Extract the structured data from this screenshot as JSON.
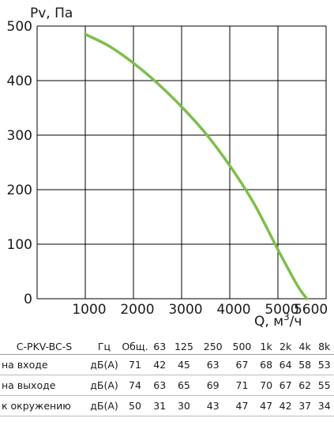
{
  "chart_data": {
    "type": "line",
    "ylabel": "Pv, Па",
    "xlabel": "Q, м³/ч",
    "xlabel_main": "Q, м",
    "xlabel_sup": "3",
    "xlabel_tail": "/ч",
    "xlim": [
      0,
      6000
    ],
    "ylim": [
      0,
      500
    ],
    "x_ticks": [
      "1000",
      "2000",
      "3000",
      "4000",
      "5000",
      "5600"
    ],
    "x_tick_values": [
      1000,
      2000,
      3000,
      4000,
      5000,
      5600
    ],
    "y_ticks": [
      "0",
      "100",
      "200",
      "300",
      "400",
      "500"
    ],
    "y_tick_values": [
      0,
      100,
      200,
      300,
      400,
      500
    ],
    "grid": true,
    "line_color": "#7dbf4a",
    "series": [
      {
        "x": [
          1000,
          1500,
          2000,
          2500,
          3000,
          3500,
          4000,
          4500,
          5000,
          5400,
          5600
        ],
        "values": [
          485,
          463,
          432,
          395,
          352,
          303,
          244,
          175,
          90,
          25,
          0
        ]
      }
    ]
  },
  "table": {
    "model": "C-PKV-BC-S",
    "hz_label": "Гц",
    "total_label": "Общ.",
    "bands": [
      "63",
      "125",
      "250",
      "500",
      "1k",
      "2k",
      "4k",
      "8k"
    ],
    "rows": [
      {
        "label": "на входе",
        "unit": "дБ(А)",
        "total": "71",
        "values": [
          "42",
          "45",
          "63",
          "67",
          "68",
          "64",
          "58",
          "53"
        ]
      },
      {
        "label": "на выходе",
        "unit": "дБ(А)",
        "total": "74",
        "values": [
          "63",
          "65",
          "69",
          "71",
          "70",
          "67",
          "62",
          "55"
        ]
      },
      {
        "label": "к окружению",
        "unit": "дБ(А)",
        "total": "50",
        "values": [
          "31",
          "30",
          "43",
          "47",
          "47",
          "42",
          "37",
          "34"
        ]
      }
    ]
  }
}
